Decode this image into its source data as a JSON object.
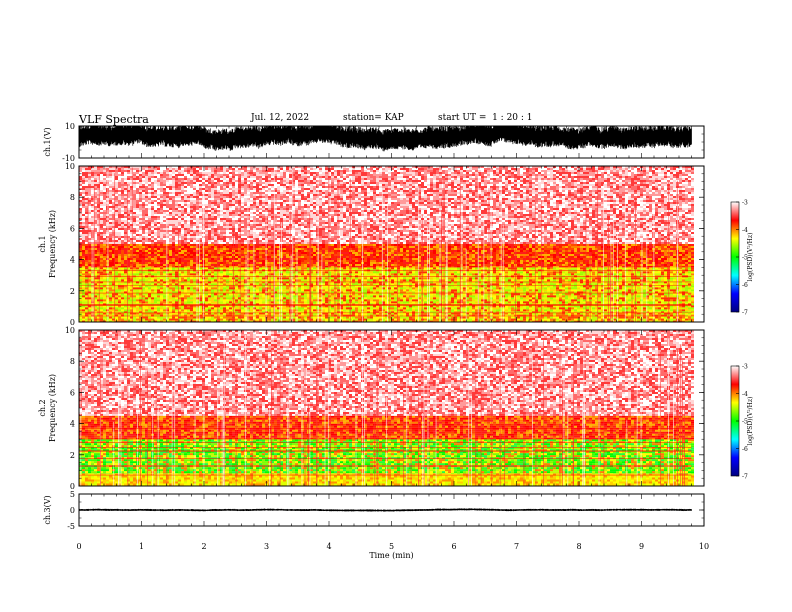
{
  "header": {
    "title": "VLF Spectra",
    "date": "Jul. 12, 2022",
    "station": "station= KAP",
    "start": "start UT =  1 : 20 : 1"
  },
  "chart_data": [
    {
      "type": "line",
      "name": "ch1-waveform",
      "ylabel": "ch.1(V)",
      "ylim": [
        -10,
        10
      ],
      "yticks": [
        "10",
        "-10"
      ],
      "xlim": [
        0,
        10
      ],
      "baseline": 3,
      "amplitude_range": [
        -8,
        10
      ]
    },
    {
      "type": "heatmap",
      "name": "ch1-spectrogram",
      "ylabel": "ch.1\nFrequency (kHz)",
      "ylim": [
        0,
        10
      ],
      "yticks": [
        "0",
        "2",
        "4",
        "6",
        "8",
        "10"
      ],
      "xlim": [
        0,
        10
      ],
      "data_end_min": 9.8,
      "colorbar": {
        "label": "log(PSD)(V²/Hz)",
        "range": [
          -7,
          -3
        ],
        "ticks": [
          "-3",
          "-4",
          "-5",
          "-6",
          "-7"
        ],
        "colors": [
          "#000080",
          "#0000ff",
          "#00ffff",
          "#00ff00",
          "#ffff00",
          "#ff0000",
          "#ffffff"
        ]
      },
      "bands": [
        {
          "from": 0,
          "to": 0.6,
          "level": "green-yellow"
        },
        {
          "from": 0.6,
          "to": 3.5,
          "level": "yellow-green"
        },
        {
          "from": 3.5,
          "to": 5,
          "level": "red"
        },
        {
          "from": 5,
          "to": 10,
          "level": "pink-white"
        }
      ]
    },
    {
      "type": "heatmap",
      "name": "ch2-spectrogram",
      "ylabel": "ch.2\nFrequency (kHz)",
      "ylim": [
        0,
        10
      ],
      "yticks": [
        "0",
        "2",
        "4",
        "6",
        "8",
        "10"
      ],
      "xlim": [
        0,
        10
      ],
      "data_end_min": 9.8,
      "colorbar": {
        "label": "log(PSD)(V²/Hz)",
        "range": [
          -7,
          -3
        ],
        "ticks": [
          "-3",
          "-4",
          "-5",
          "-6",
          "-7"
        ],
        "colors": [
          "#000080",
          "#0000ff",
          "#00ffff",
          "#00ff00",
          "#ffff00",
          "#ff0000",
          "#ffffff"
        ]
      },
      "bands": [
        {
          "from": 0,
          "to": 0.8,
          "level": "yellow"
        },
        {
          "from": 0.8,
          "to": 3.0,
          "level": "green"
        },
        {
          "from": 3.0,
          "to": 4.5,
          "level": "red"
        },
        {
          "from": 4.5,
          "to": 10,
          "level": "pink-white"
        }
      ]
    },
    {
      "type": "line",
      "name": "ch3-waveform",
      "ylabel": "ch.3(V)",
      "ylim": [
        -5,
        5
      ],
      "yticks": [
        "5",
        "0",
        "-5"
      ],
      "xlim": [
        0,
        10
      ],
      "baseline": 0,
      "amplitude_range": [
        -0.4,
        0.4
      ]
    }
  ],
  "xaxis": {
    "label": "Time (min)",
    "ticks": [
      "0",
      "1",
      "2",
      "3",
      "4",
      "5",
      "6",
      "7",
      "8",
      "9",
      "10"
    ]
  }
}
